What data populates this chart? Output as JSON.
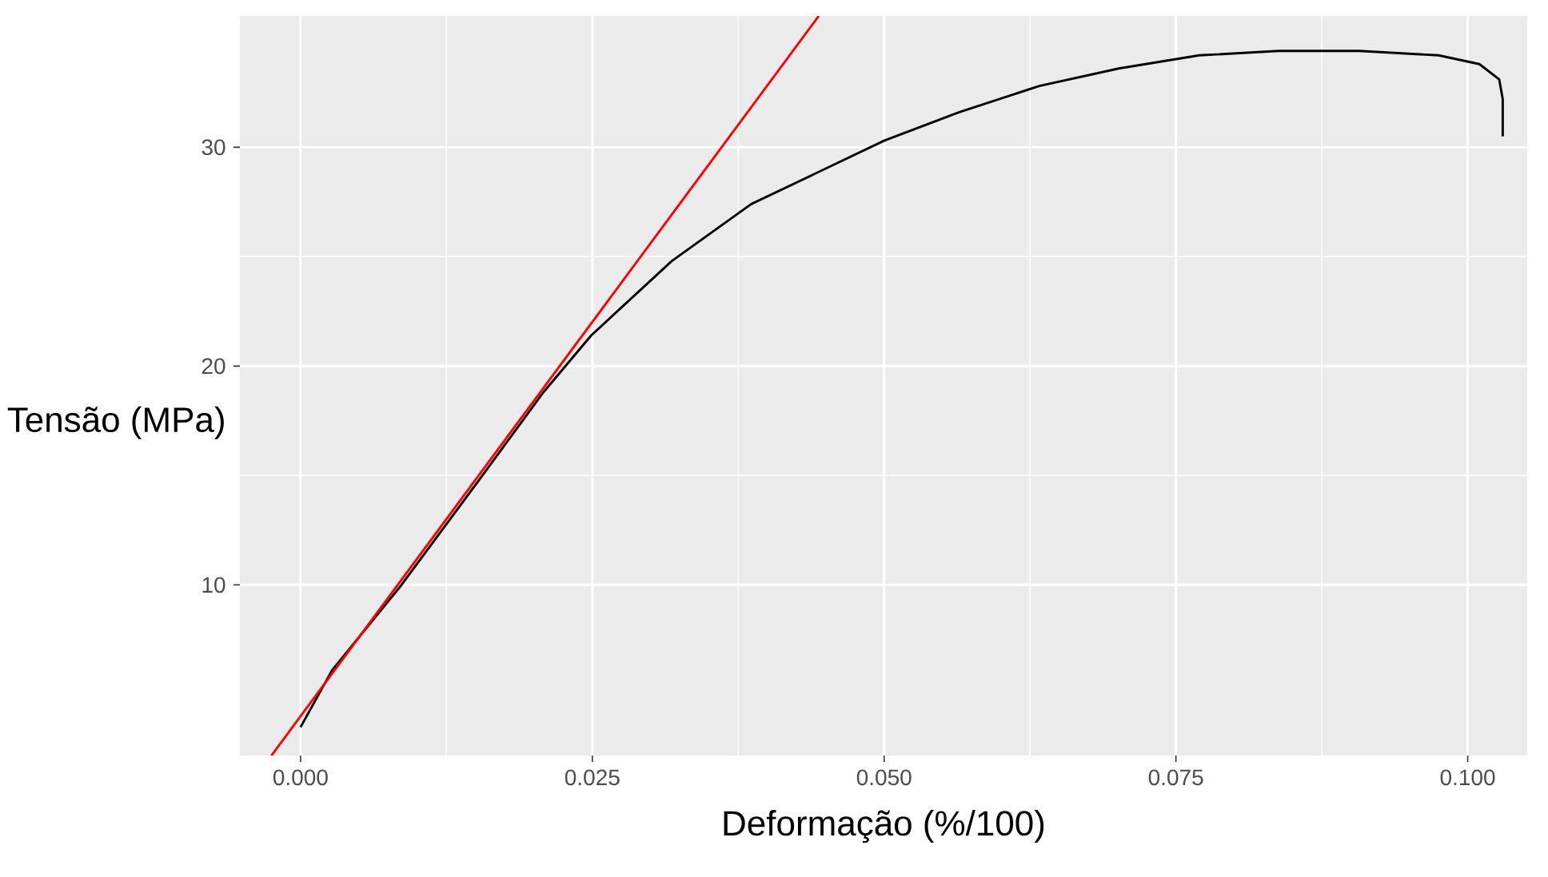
{
  "chart_data": {
    "type": "line",
    "xlabel": "Deformação (%/100)",
    "ylabel": "Tensão (MPa)",
    "xlim": [
      -0.0052,
      0.1051
    ],
    "ylim": [
      2.2,
      36
    ],
    "xticks": [
      {
        "value": 0,
        "label": "0.000"
      },
      {
        "value": 0.025,
        "label": "0.025"
      },
      {
        "value": 0.05,
        "label": "0.050"
      },
      {
        "value": 0.075,
        "label": "0.075"
      },
      {
        "value": 0.1,
        "label": "0.100"
      }
    ],
    "yticks": [
      10,
      20,
      30
    ],
    "grid": true,
    "marker": "none",
    "line_style": "solid",
    "series": [
      {
        "color": "#000000",
        "x": [
          0,
          0.0027,
          0.0085,
          0.0153,
          0.0208,
          0.0249,
          0.0318,
          0.0386,
          0.05,
          0.0564,
          0.0633,
          0.0701,
          0.077,
          0.0838,
          0.0907,
          0.0975,
          0.101,
          0.1027,
          0.103,
          0.103
        ],
        "values": [
          3.5,
          6.1,
          9.9,
          14.8,
          18.8,
          21.4,
          24.8,
          27.4,
          30.3,
          31.6,
          32.8,
          33.6,
          34.2,
          34.4,
          34.4,
          34.2,
          33.8,
          33.1,
          32.2,
          30.5
        ]
      },
      {
        "color": "#ff0000",
        "x": [
          -0.0025,
          0.0444
        ],
        "values": [
          2.2,
          36
        ]
      }
    ]
  }
}
